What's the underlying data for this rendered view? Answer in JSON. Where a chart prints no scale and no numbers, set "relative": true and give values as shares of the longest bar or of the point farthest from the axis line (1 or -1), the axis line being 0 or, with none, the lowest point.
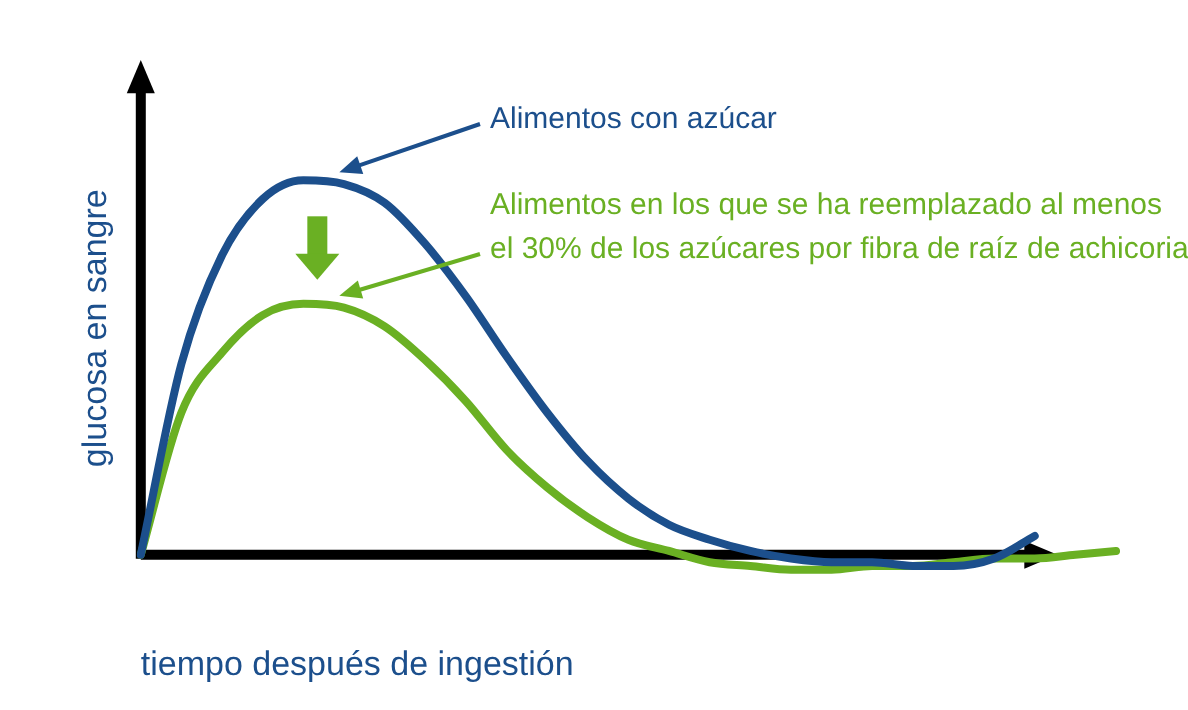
{
  "chart_data": {
    "type": "line",
    "relative": true,
    "xlabel": "tiempo después de ingestión",
    "ylabel": "glucosa en sangre",
    "legend": false,
    "grid": false,
    "marker": "none",
    "line_style": "solid",
    "categories": [
      null,
      null,
      null,
      null,
      null,
      null,
      null,
      null,
      null,
      null,
      null,
      null,
      null,
      null,
      null,
      null,
      null,
      null,
      null,
      null,
      null,
      null,
      null,
      null,
      null
    ],
    "series": [
      {
        "name": "Alimentos con azúcar",
        "color": "#1c4f8c",
        "values": [
          0,
          0.51,
          0.8,
          0.95,
          1,
          0.99,
          0.94,
          0.83,
          0.69,
          0.53,
          0.38,
          0.25,
          0.15,
          0.08,
          0.04,
          0.01,
          -0.01,
          -0.02,
          -0.02,
          -0.03,
          -0.03,
          -0.01,
          0.05,
          null,
          null
        ]
      },
      {
        "name": "Alimentos en los que se ha reemplazado al menos el 30% de los azúcares por fibra de raíz de achicoria",
        "color": "#6ab023",
        "values": [
          0,
          0.38,
          0.54,
          0.64,
          0.67,
          0.66,
          0.61,
          0.52,
          0.41,
          0.28,
          0.18,
          0.1,
          0.04,
          0.01,
          -0.02,
          -0.03,
          -0.04,
          -0.04,
          -0.03,
          -0.03,
          -0.02,
          -0.01,
          -0.01,
          0,
          0.01
        ]
      }
    ]
  }
}
